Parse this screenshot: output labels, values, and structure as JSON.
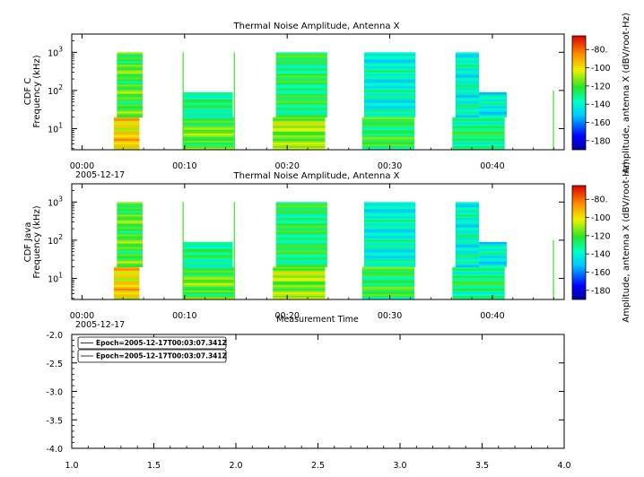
{
  "chart_data": [
    {
      "type": "heatmap",
      "title": "Thermal Noise Amplitude, Antenna X",
      "ylabel_line1": "CDF C",
      "ylabel_line2": "Frequency (kHz)",
      "date_label": "2005-12-17",
      "x_ticks": [
        "00:00",
        "00:10",
        "00:20",
        "00:30",
        "00:40"
      ],
      "x_range_minutes": [
        -1,
        47
      ],
      "y_scale": "log",
      "y_range_khz": [
        2.8,
        3000
      ],
      "y_ticks": [
        {
          "base": "10",
          "exp": "3",
          "value": 1000
        },
        {
          "base": "10",
          "exp": "2",
          "value": 100
        },
        {
          "base": "10",
          "exp": "1",
          "value": 10
        }
      ],
      "colorbar": {
        "label": "Amplitude, antenna X (dBV/root-Hz)",
        "range": [
          -190,
          -65
        ],
        "ticks": [
          "-80.",
          "-100",
          "-120",
          "-140",
          "-160",
          "-180"
        ],
        "tick_values": [
          -80,
          -100,
          -120,
          -140,
          -160,
          -180
        ]
      },
      "blocks": [
        {
          "t0": 3.1,
          "t1": 5.6,
          "f0": 2.8,
          "f1": 20,
          "base": -98
        },
        {
          "t0": 3.4,
          "t1": 5.9,
          "f0": 20,
          "f1": 1000,
          "base": -120
        },
        {
          "t0": 9.8,
          "t1": 14.8,
          "f0": 2.8,
          "f1": 20,
          "base": -118
        },
        {
          "t0": 9.8,
          "t1": 14.7,
          "f0": 20,
          "f1": 90,
          "base": -132
        },
        {
          "t0": 18.6,
          "t1": 23.7,
          "f0": 2.8,
          "f1": 20,
          "base": -112
        },
        {
          "t0": 18.9,
          "t1": 23.9,
          "f0": 20,
          "f1": 1000,
          "base": -128
        },
        {
          "t0": 27.3,
          "t1": 32.4,
          "f0": 2.8,
          "f1": 20,
          "base": -125
        },
        {
          "t0": 27.5,
          "t1": 32.5,
          "f0": 20,
          "f1": 1000,
          "base": -140
        },
        {
          "t0": 36.1,
          "t1": 41.2,
          "f0": 2.8,
          "f1": 20,
          "base": -130
        },
        {
          "t0": 36.4,
          "t1": 38.7,
          "f0": 20,
          "f1": 1000,
          "base": -140
        },
        {
          "t0": 38.7,
          "t1": 41.4,
          "f0": 20,
          "f1": 90,
          "base": -142
        }
      ]
    },
    {
      "type": "heatmap",
      "title": "Thermal Noise Amplitude, Antenna X",
      "ylabel_line1": "CDF Java",
      "ylabel_line2": "Frequency (kHz)",
      "date_label": "2005-12-17",
      "xlabel": "Measurement Time",
      "x_ticks": [
        "00:00",
        "00:10",
        "00:20",
        "00:30",
        "00:40"
      ],
      "x_range_minutes": [
        -1,
        47
      ],
      "y_scale": "log",
      "y_range_khz": [
        2.8,
        3000
      ],
      "y_ticks": [
        {
          "base": "10",
          "exp": "3",
          "value": 1000
        },
        {
          "base": "10",
          "exp": "2",
          "value": 100
        },
        {
          "base": "10",
          "exp": "1",
          "value": 10
        }
      ],
      "colorbar": {
        "label": "Amplitude, antenna X (dBV/root-Hz)",
        "range": [
          -190,
          -65
        ],
        "ticks": [
          "-80.",
          "-100",
          "-120",
          "-140",
          "-160",
          "-180"
        ],
        "tick_values": [
          -80,
          -100,
          -120,
          -140,
          -160,
          -180
        ]
      },
      "blocks": [
        {
          "t0": 3.1,
          "t1": 5.6,
          "f0": 2.8,
          "f1": 20,
          "base": -98
        },
        {
          "t0": 3.4,
          "t1": 5.9,
          "f0": 20,
          "f1": 1000,
          "base": -120
        },
        {
          "t0": 9.8,
          "t1": 14.8,
          "f0": 2.8,
          "f1": 20,
          "base": -118
        },
        {
          "t0": 9.8,
          "t1": 14.7,
          "f0": 20,
          "f1": 90,
          "base": -132
        },
        {
          "t0": 18.6,
          "t1": 23.7,
          "f0": 2.8,
          "f1": 20,
          "base": -112
        },
        {
          "t0": 18.9,
          "t1": 23.9,
          "f0": 20,
          "f1": 1000,
          "base": -128
        },
        {
          "t0": 27.3,
          "t1": 32.4,
          "f0": 2.8,
          "f1": 20,
          "base": -125
        },
        {
          "t0": 27.5,
          "t1": 32.5,
          "f0": 20,
          "f1": 1000,
          "base": -140
        },
        {
          "t0": 36.1,
          "t1": 41.2,
          "f0": 2.8,
          "f1": 20,
          "base": -130
        },
        {
          "t0": 36.4,
          "t1": 38.7,
          "f0": 20,
          "f1": 1000,
          "base": -140
        },
        {
          "t0": 38.7,
          "t1": 41.4,
          "f0": 20,
          "f1": 90,
          "base": -142
        }
      ]
    },
    {
      "type": "line",
      "x_ticks": [
        "1.0",
        "1.5",
        "2.0",
        "2.5",
        "3.0",
        "3.5",
        "4.0"
      ],
      "x_tick_values": [
        1.0,
        1.5,
        2.0,
        2.5,
        3.0,
        3.5,
        4.0
      ],
      "y_ticks": [
        "-2.0",
        "-2.5",
        "-3.0",
        "-3.5",
        "-4.0"
      ],
      "y_tick_values": [
        -2.0,
        -2.5,
        -3.0,
        -3.5,
        -4.0
      ],
      "xlim": [
        1.0,
        4.0
      ],
      "ylim": [
        -4.0,
        -2.0
      ],
      "legend": [
        "Epoch=2005-12-17T00:03:07.341Z",
        "Epoch=2005-12-17T00:03:07.341Z"
      ],
      "legend_placement": "top-left",
      "series": []
    }
  ]
}
